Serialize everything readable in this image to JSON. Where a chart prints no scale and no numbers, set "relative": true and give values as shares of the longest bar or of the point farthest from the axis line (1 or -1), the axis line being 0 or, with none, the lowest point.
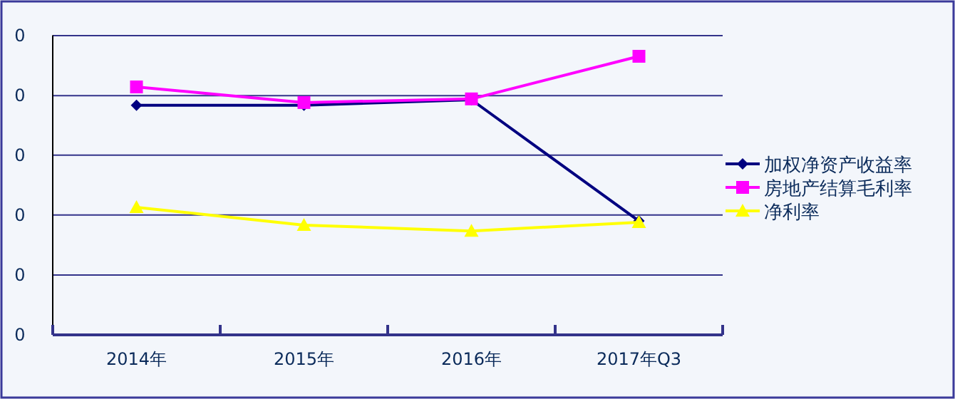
{
  "chart_data": {
    "type": "line",
    "relative": true,
    "categories": [
      "2014年",
      "2015年",
      "2016年",
      "2017年Q3"
    ],
    "annotations": [
      "0",
      "0",
      "0",
      "0",
      "0",
      "0"
    ],
    "ref_lines": [
      {
        "axis": "y",
        "value": 0.215,
        "color": "#33338a"
      },
      {
        "axis": "y",
        "value": 0.43,
        "color": "#33338a"
      },
      {
        "axis": "y",
        "value": 0.645,
        "color": "#33338a"
      },
      {
        "axis": "y",
        "value": 0.859,
        "color": "#33338a"
      },
      {
        "axis": "y",
        "value": 1.074,
        "color": "#33338a"
      }
    ],
    "legend": "right",
    "series": [
      {
        "name": "加权净资产收益率",
        "color": "#000080",
        "marker": "diamond",
        "values": [
          0.824,
          0.824,
          0.844,
          0.409
        ]
      },
      {
        "name": "房地产结算毛利率",
        "color": "#ff00ff",
        "marker": "square",
        "values": [
          0.89,
          0.834,
          0.847,
          1
        ]
      },
      {
        "name": "净利率",
        "color": "#ffff00",
        "marker": "triangle",
        "values": [
          0.458,
          0.394,
          0.373,
          0.404
        ]
      }
    ]
  }
}
